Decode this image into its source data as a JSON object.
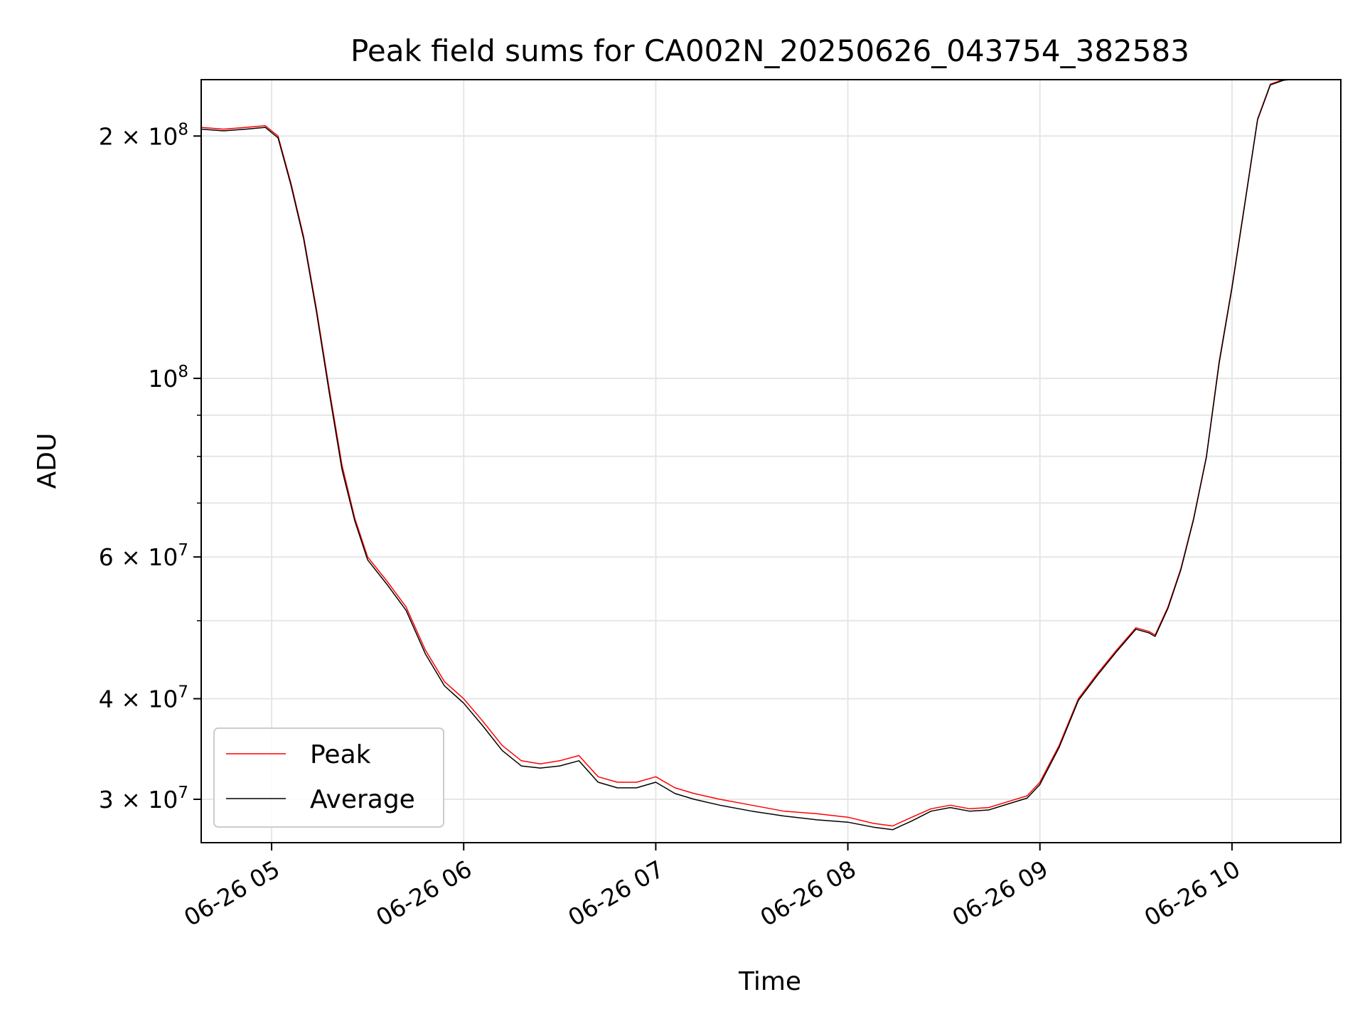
{
  "chart_data": {
    "type": "line",
    "title": "Peak field sums for CA002N_20250626_043754_382583",
    "xlabel": "Time",
    "ylabel": "ADU",
    "yscale": "log",
    "grid": true,
    "legend_position": "lower-left",
    "xlim": [
      "2025-06-26 04:38",
      "2025-06-26 10:34"
    ],
    "ylim": [
      26500000,
      235000000
    ],
    "x_ticks": [
      {
        "t": "2025-06-26 05:00",
        "label": "06-26 05"
      },
      {
        "t": "2025-06-26 06:00",
        "label": "06-26 06"
      },
      {
        "t": "2025-06-26 07:00",
        "label": "06-26 07"
      },
      {
        "t": "2025-06-26 08:00",
        "label": "06-26 08"
      },
      {
        "t": "2025-06-26 09:00",
        "label": "06-26 09"
      },
      {
        "t": "2025-06-26 10:00",
        "label": "06-26 10"
      }
    ],
    "y_major_ticks": [
      {
        "v": 30000000,
        "label_base": "3 × 10",
        "label_exp": "7"
      },
      {
        "v": 40000000,
        "label_base": "4 × 10",
        "label_exp": "7"
      },
      {
        "v": 60000000,
        "label_base": "6 × 10",
        "label_exp": "7"
      },
      {
        "v": 100000000,
        "label_base": "10",
        "label_exp": "8"
      },
      {
        "v": 200000000,
        "label_base": "2 × 10",
        "label_exp": "8"
      }
    ],
    "y_minor_ticks": [
      50000000,
      70000000,
      80000000,
      90000000
    ],
    "series": [
      {
        "name": "Peak",
        "color": "#ff0000",
        "x": [
          "2025-06-26 04:38",
          "2025-06-26 04:45",
          "2025-06-26 04:52",
          "2025-06-26 04:58",
          "2025-06-26 05:02",
          "2025-06-26 05:06",
          "2025-06-26 05:10",
          "2025-06-26 05:14",
          "2025-06-26 05:18",
          "2025-06-26 05:22",
          "2025-06-26 05:26",
          "2025-06-26 05:30",
          "2025-06-26 05:36",
          "2025-06-26 05:42",
          "2025-06-26 05:48",
          "2025-06-26 05:54",
          "2025-06-26 06:00",
          "2025-06-26 06:06",
          "2025-06-26 06:12",
          "2025-06-26 06:18",
          "2025-06-26 06:24",
          "2025-06-26 06:30",
          "2025-06-26 06:36",
          "2025-06-26 06:42",
          "2025-06-26 06:48",
          "2025-06-26 06:54",
          "2025-06-26 07:00",
          "2025-06-26 07:06",
          "2025-06-26 07:12",
          "2025-06-26 07:20",
          "2025-06-26 07:30",
          "2025-06-26 07:40",
          "2025-06-26 07:50",
          "2025-06-26 08:00",
          "2025-06-26 08:08",
          "2025-06-26 08:14",
          "2025-06-26 08:20",
          "2025-06-26 08:26",
          "2025-06-26 08:32",
          "2025-06-26 08:38",
          "2025-06-26 08:44",
          "2025-06-26 08:50",
          "2025-06-26 08:56",
          "2025-06-26 09:00",
          "2025-06-26 09:06",
          "2025-06-26 09:12",
          "2025-06-26 09:18",
          "2025-06-26 09:24",
          "2025-06-26 09:30",
          "2025-06-26 09:34",
          "2025-06-26 09:36",
          "2025-06-26 09:40",
          "2025-06-26 09:44",
          "2025-06-26 09:48",
          "2025-06-26 09:52",
          "2025-06-26 09:56",
          "2025-06-26 10:00",
          "2025-06-26 10:04",
          "2025-06-26 10:08",
          "2025-06-26 10:12",
          "2025-06-26 10:16",
          "2025-06-26 10:20"
        ],
        "values": [
          205000000,
          204000000,
          205000000,
          206000000,
          200000000,
          175000000,
          150000000,
          122000000,
          97000000,
          78000000,
          67000000,
          60000000,
          56000000,
          52000000,
          46000000,
          42000000,
          40000000,
          37500000,
          35000000,
          33500000,
          33200000,
          33500000,
          34000000,
          32000000,
          31500000,
          31500000,
          32000000,
          31000000,
          30500000,
          30000000,
          29500000,
          29000000,
          28800000,
          28500000,
          28000000,
          27800000,
          28500000,
          29200000,
          29500000,
          29200000,
          29300000,
          29800000,
          30300000,
          31500000,
          35000000,
          40000000,
          43000000,
          46000000,
          49000000,
          48500000,
          48000000,
          52000000,
          58000000,
          67000000,
          80000000,
          105000000,
          130000000,
          165000000,
          210000000,
          232000000,
          235000000,
          236000000
        ]
      },
      {
        "name": "Average",
        "color": "#000000",
        "x": [
          "2025-06-26 04:38",
          "2025-06-26 04:45",
          "2025-06-26 04:52",
          "2025-06-26 04:58",
          "2025-06-26 05:02",
          "2025-06-26 05:06",
          "2025-06-26 05:10",
          "2025-06-26 05:14",
          "2025-06-26 05:18",
          "2025-06-26 05:22",
          "2025-06-26 05:26",
          "2025-06-26 05:30",
          "2025-06-26 05:36",
          "2025-06-26 05:42",
          "2025-06-26 05:48",
          "2025-06-26 05:54",
          "2025-06-26 06:00",
          "2025-06-26 06:06",
          "2025-06-26 06:12",
          "2025-06-26 06:18",
          "2025-06-26 06:24",
          "2025-06-26 06:30",
          "2025-06-26 06:36",
          "2025-06-26 06:42",
          "2025-06-26 06:48",
          "2025-06-26 06:54",
          "2025-06-26 07:00",
          "2025-06-26 07:06",
          "2025-06-26 07:12",
          "2025-06-26 07:20",
          "2025-06-26 07:30",
          "2025-06-26 07:40",
          "2025-06-26 07:50",
          "2025-06-26 08:00",
          "2025-06-26 08:08",
          "2025-06-26 08:14",
          "2025-06-26 08:20",
          "2025-06-26 08:26",
          "2025-06-26 08:32",
          "2025-06-26 08:38",
          "2025-06-26 08:44",
          "2025-06-26 08:50",
          "2025-06-26 08:56",
          "2025-06-26 09:00",
          "2025-06-26 09:06",
          "2025-06-26 09:12",
          "2025-06-26 09:18",
          "2025-06-26 09:24",
          "2025-06-26 09:30",
          "2025-06-26 09:34",
          "2025-06-26 09:36",
          "2025-06-26 09:40",
          "2025-06-26 09:44",
          "2025-06-26 09:48",
          "2025-06-26 09:52",
          "2025-06-26 09:56",
          "2025-06-26 10:00",
          "2025-06-26 10:04",
          "2025-06-26 10:08",
          "2025-06-26 10:12",
          "2025-06-26 10:16",
          "2025-06-26 10:20"
        ],
        "values": [
          204000000,
          203000000,
          204000000,
          205000000,
          199000000,
          174000000,
          149000000,
          121000000,
          96000000,
          77000000,
          66500000,
          59500000,
          55500000,
          51500000,
          45500000,
          41500000,
          39500000,
          37000000,
          34500000,
          33000000,
          32800000,
          33000000,
          33500000,
          31500000,
          31000000,
          31000000,
          31500000,
          30500000,
          30000000,
          29500000,
          29000000,
          28600000,
          28300000,
          28100000,
          27700000,
          27500000,
          28200000,
          29000000,
          29300000,
          29000000,
          29100000,
          29600000,
          30100000,
          31300000,
          34800000,
          39800000,
          42800000,
          45800000,
          48800000,
          48300000,
          47800000,
          51800000,
          57800000,
          66800000,
          79800000,
          104500000,
          129500000,
          164500000,
          209500000,
          231500000,
          234500000,
          235500000
        ]
      }
    ]
  }
}
